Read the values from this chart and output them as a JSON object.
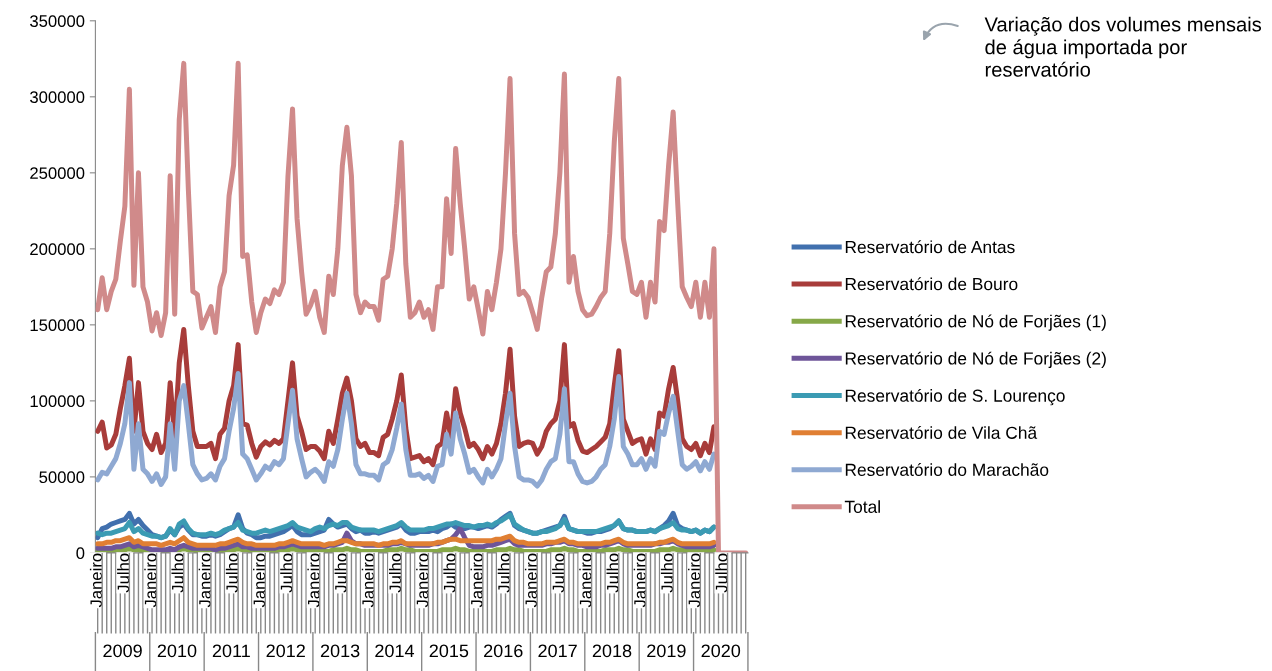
{
  "chart_data": {
    "type": "line",
    "categories": [
      "Janeiro",
      null,
      null,
      null,
      null,
      null,
      "Julho",
      null,
      null,
      null,
      null,
      null,
      "Janeiro",
      null,
      null,
      null,
      null,
      null,
      "Julho",
      null,
      null,
      null,
      null,
      null,
      "Janeiro",
      null,
      null,
      null,
      null,
      null,
      "Julho",
      null,
      null,
      null,
      null,
      null,
      "Janeiro",
      null,
      null,
      null,
      null,
      null,
      "Julho",
      null,
      null,
      null,
      null,
      null,
      "Janeiro",
      null,
      null,
      null,
      null,
      null,
      "Julho",
      null,
      null,
      null,
      null,
      null,
      "Janeiro",
      null,
      null,
      null,
      null,
      null,
      "Julho",
      null,
      null,
      null,
      null,
      null,
      "Janeiro",
      null,
      null,
      null,
      null,
      null,
      "Julho",
      null,
      null,
      null,
      null,
      null,
      "Janeiro",
      null,
      null,
      null,
      null,
      null,
      "Julho",
      null,
      null,
      null,
      null,
      null,
      "Janeiro",
      null,
      null,
      null,
      null,
      null,
      "Julho",
      null,
      null,
      null,
      null,
      null,
      "Janeiro",
      null,
      null,
      null,
      null,
      null,
      "Julho",
      null,
      null,
      null,
      null,
      null,
      "Janeiro",
      null,
      null,
      null,
      null,
      null,
      "Julho",
      null,
      null,
      null,
      null,
      null,
      "Janeiro",
      null,
      null,
      null,
      null,
      null,
      "Julho",
      null,
      null,
      null,
      null,
      null
    ],
    "series": [
      {
        "name": "Reservatório de Antas",
        "color": "#4170ae",
        "values": [
          10000,
          16000,
          17000,
          19000,
          20000,
          21000,
          22000,
          26000,
          19000,
          22000,
          18000,
          15000,
          12000,
          11000,
          10000,
          11000,
          15000,
          12000,
          17000,
          19000,
          15000,
          12000,
          12000,
          11000,
          11000,
          12000,
          11000,
          12000,
          14000,
          16000,
          17000,
          25000,
          16000,
          13000,
          12000,
          10000,
          10000,
          11000,
          11000,
          12000,
          13000,
          14000,
          16000,
          18000,
          14000,
          12000,
          12000,
          12000,
          13000,
          14000,
          15000,
          22000,
          19000,
          17000,
          18000,
          19000,
          16000,
          14000,
          15000,
          13000,
          13000,
          14000,
          13000,
          14000,
          15000,
          16000,
          17000,
          19000,
          15000,
          13000,
          13000,
          14000,
          14000,
          14000,
          15000,
          14000,
          16000,
          17000,
          19000,
          17000,
          16000,
          16000,
          17000,
          17000,
          16000,
          17000,
          18000,
          17000,
          19000,
          22000,
          24000,
          26000,
          18000,
          16000,
          15000,
          14000,
          13000,
          13000,
          14000,
          15000,
          16000,
          17000,
          18000,
          24000,
          16000,
          15000,
          14000,
          14000,
          13000,
          13000,
          14000,
          14000,
          15000,
          16000,
          18000,
          21000,
          16000,
          15000,
          15000,
          14000,
          14000,
          14000,
          15000,
          14000,
          16000,
          18000,
          21000,
          26000,
          18000,
          16000,
          15000,
          14000,
          15000,
          13000,
          15000,
          14000,
          17000,
          null,
          null,
          null,
          null,
          null,
          null,
          null
        ]
      },
      {
        "name": "Reservatório de Bouro",
        "color": "#a83c3a",
        "values": [
          80000,
          86000,
          69000,
          71000,
          78000,
          95000,
          110000,
          128000,
          80000,
          112000,
          80000,
          72000,
          68000,
          78000,
          66000,
          72000,
          112000,
          76000,
          125000,
          147000,
          110000,
          80000,
          70000,
          70000,
          70000,
          72000,
          62000,
          78000,
          82000,
          100000,
          110000,
          137000,
          85000,
          84000,
          72000,
          63000,
          70000,
          73000,
          71000,
          74000,
          72000,
          75000,
          100000,
          125000,
          90000,
          80000,
          68000,
          70000,
          70000,
          67000,
          62000,
          80000,
          72000,
          88000,
          105000,
          115000,
          100000,
          75000,
          70000,
          72000,
          66000,
          66000,
          64000,
          76000,
          78000,
          88000,
          100000,
          117000,
          82000,
          62000,
          63000,
          64000,
          60000,
          62000,
          58000,
          70000,
          72000,
          92000,
          75000,
          108000,
          92000,
          82000,
          70000,
          72000,
          68000,
          62000,
          70000,
          65000,
          72000,
          85000,
          105000,
          134000,
          90000,
          70000,
          72000,
          73000,
          72000,
          65000,
          70000,
          80000,
          85000,
          88000,
          100000,
          137000,
          83000,
          85000,
          74000,
          67000,
          66000,
          68000,
          70000,
          73000,
          76000,
          85000,
          110000,
          133000,
          88000,
          80000,
          72000,
          74000,
          75000,
          65000,
          75000,
          68000,
          92000,
          90000,
          108000,
          122000,
          100000,
          75000,
          70000,
          68000,
          72000,
          64000,
          72000,
          66000,
          83000,
          null,
          null,
          null,
          null,
          null,
          null,
          null
        ]
      },
      {
        "name": "Reservatório de Nó de Forjães (1)",
        "color": "#86a848",
        "values": [
          1000,
          1000,
          1000,
          1000,
          2000,
          2000,
          2000,
          3000,
          2000,
          2000,
          1000,
          1000,
          1000,
          1000,
          1000,
          1000,
          2000,
          2000,
          2000,
          3000,
          2000,
          2000,
          1000,
          1000,
          1000,
          1000,
          1000,
          1000,
          2000,
          2000,
          2000,
          3000,
          2000,
          2000,
          1000,
          1000,
          1000,
          1000,
          1000,
          1000,
          2000,
          2000,
          2000,
          3000,
          2000,
          2000,
          1000,
          1000,
          1000,
          1000,
          1000,
          1000,
          2000,
          2000,
          2000,
          3000,
          2000,
          2000,
          1000,
          1000,
          1000,
          1000,
          1000,
          1000,
          2000,
          2000,
          2000,
          3000,
          2000,
          2000,
          1000,
          1000,
          1000,
          1000,
          1000,
          1000,
          2000,
          2000,
          2000,
          3000,
          2000,
          2000,
          1000,
          1000,
          1000,
          1000,
          1000,
          1000,
          2000,
          2000,
          2000,
          3000,
          2000,
          2000,
          1000,
          1000,
          1000,
          1000,
          1000,
          1000,
          2000,
          2000,
          2000,
          3000,
          2000,
          2000,
          1000,
          1000,
          1000,
          1000,
          1000,
          1000,
          2000,
          2000,
          2000,
          3000,
          2000,
          2000,
          1000,
          1000,
          1000,
          1000,
          1000,
          1000,
          2000,
          2000,
          2000,
          3000,
          2000,
          2000,
          1000,
          1000,
          1000,
          1000,
          1000,
          1000,
          2000,
          null,
          null,
          null,
          null,
          null,
          null,
          null
        ]
      },
      {
        "name": "Reservatório de Nó de Forjães (2)",
        "color": "#6e5599",
        "values": [
          3000,
          3000,
          3000,
          3000,
          4000,
          4000,
          5000,
          6000,
          4000,
          5000,
          4000,
          3000,
          2000,
          2000,
          2000,
          2000,
          3000,
          2000,
          4000,
          5000,
          4000,
          3000,
          3000,
          3000,
          3000,
          3000,
          2000,
          3000,
          3000,
          4000,
          5000,
          6000,
          4000,
          4000,
          3000,
          3000,
          3000,
          3000,
          3000,
          3000,
          4000,
          4000,
          5000,
          6000,
          5000,
          4000,
          4000,
          4000,
          4000,
          4000,
          4000,
          5000,
          5000,
          6000,
          7000,
          13000,
          8000,
          6000,
          6000,
          5000,
          5000,
          5000,
          5000,
          5000,
          5000,
          6000,
          6000,
          7000,
          6000,
          5000,
          5000,
          5000,
          5000,
          5000,
          6000,
          6000,
          7000,
          8000,
          9000,
          12000,
          16000,
          10000,
          5000,
          4000,
          4000,
          4000,
          5000,
          5000,
          6000,
          7000,
          8000,
          9000,
          6000,
          5000,
          5000,
          5000,
          5000,
          5000,
          5000,
          6000,
          6000,
          7000,
          7000,
          8000,
          6000,
          6000,
          5000,
          5000,
          4000,
          4000,
          4000,
          5000,
          5000,
          6000,
          7000,
          8000,
          6000,
          5000,
          5000,
          5000,
          5000,
          5000,
          5000,
          6000,
          6000,
          7000,
          7000,
          8000,
          6000,
          5000,
          4000,
          4000,
          4000,
          4000,
          4000,
          4000,
          5000,
          null,
          null,
          null,
          null,
          null,
          null,
          null
        ]
      },
      {
        "name": "Reservatório de S. Lourenço",
        "color": "#3b9bb3",
        "values": [
          13000,
          12000,
          13000,
          13000,
          14000,
          15000,
          16000,
          20000,
          14000,
          16000,
          13000,
          12000,
          11000,
          11000,
          10000,
          11000,
          16000,
          12000,
          19000,
          21000,
          16000,
          13000,
          12000,
          12000,
          12000,
          13000,
          12000,
          13000,
          15000,
          16000,
          17000,
          20000,
          15000,
          14000,
          13000,
          13000,
          14000,
          15000,
          14000,
          15000,
          16000,
          17000,
          18000,
          20000,
          17000,
          16000,
          15000,
          14000,
          16000,
          17000,
          16000,
          18000,
          19000,
          18000,
          20000,
          20000,
          17000,
          16000,
          15000,
          15000,
          15000,
          15000,
          14000,
          15000,
          16000,
          17000,
          18000,
          20000,
          17000,
          15000,
          15000,
          15000,
          15000,
          16000,
          16000,
          17000,
          18000,
          19000,
          19000,
          20000,
          19000,
          18000,
          18000,
          17000,
          18000,
          18000,
          19000,
          18000,
          20000,
          21000,
          23000,
          25000,
          19000,
          17000,
          15000,
          14000,
          13000,
          13000,
          14000,
          14000,
          15000,
          16000,
          18000,
          22000,
          16000,
          15000,
          14000,
          14000,
          14000,
          14000,
          14000,
          15000,
          16000,
          17000,
          18000,
          21000,
          16000,
          15000,
          15000,
          14000,
          14000,
          14000,
          15000,
          14000,
          16000,
          17000,
          18000,
          20000,
          16000,
          15000,
          15000,
          14000,
          15000,
          13000,
          15000,
          14000,
          17000,
          null,
          null,
          null,
          null,
          null,
          null,
          null
        ]
      },
      {
        "name": "Reservatório de Vila Chã",
        "color": "#e07f33",
        "values": [
          6000,
          6000,
          7000,
          7000,
          8000,
          8000,
          9000,
          10000,
          7000,
          8000,
          6000,
          6000,
          6000,
          6000,
          5000,
          6000,
          7000,
          6000,
          8000,
          10000,
          7000,
          6000,
          5000,
          5000,
          5000,
          5000,
          5000,
          6000,
          6000,
          7000,
          8000,
          9000,
          7000,
          6000,
          6000,
          5000,
          5000,
          5000,
          5000,
          5000,
          6000,
          6000,
          7000,
          8000,
          7000,
          6000,
          6000,
          6000,
          6000,
          6000,
          5000,
          6000,
          6000,
          7000,
          8000,
          8000,
          7000,
          6000,
          6000,
          6000,
          6000,
          6000,
          5000,
          6000,
          6000,
          7000,
          7000,
          8000,
          6000,
          6000,
          6000,
          6000,
          6000,
          6000,
          6000,
          7000,
          7000,
          8000,
          9000,
          9000,
          8000,
          8000,
          8000,
          8000,
          8000,
          8000,
          8000,
          8000,
          9000,
          9000,
          10000,
          11000,
          8000,
          7000,
          7000,
          6000,
          6000,
          6000,
          6000,
          7000,
          7000,
          7000,
          8000,
          9000,
          7000,
          7000,
          6000,
          6000,
          6000,
          6000,
          6000,
          6000,
          7000,
          7000,
          8000,
          9000,
          7000,
          6000,
          6000,
          6000,
          6000,
          6000,
          6000,
          6000,
          7000,
          7000,
          8000,
          9000,
          7000,
          6000,
          6000,
          6000,
          6000,
          6000,
          6000,
          6000,
          7000,
          null,
          null,
          null,
          null,
          null,
          null,
          null
        ]
      },
      {
        "name": "Reservatório do Marachão",
        "color": "#8fa9d2",
        "values": [
          48000,
          53000,
          52000,
          57000,
          62000,
          72000,
          85000,
          112000,
          55000,
          85000,
          55000,
          52000,
          47000,
          52000,
          45000,
          50000,
          85000,
          55000,
          100000,
          110000,
          85000,
          58000,
          52000,
          48000,
          49000,
          52000,
          48000,
          57000,
          62000,
          80000,
          95000,
          118000,
          65000,
          62000,
          55000,
          48000,
          52000,
          57000,
          55000,
          60000,
          58000,
          62000,
          85000,
          107000,
          75000,
          62000,
          50000,
          53000,
          55000,
          52000,
          47000,
          60000,
          57000,
          68000,
          88000,
          105000,
          85000,
          58000,
          52000,
          52000,
          51000,
          51000,
          48000,
          58000,
          60000,
          68000,
          82000,
          98000,
          68000,
          51000,
          51000,
          52000,
          49000,
          51000,
          47000,
          57000,
          58000,
          78000,
          65000,
          92000,
          75000,
          65000,
          53000,
          55000,
          50000,
          46000,
          55000,
          50000,
          55000,
          62000,
          85000,
          105000,
          70000,
          50000,
          48000,
          48000,
          47000,
          44000,
          48000,
          55000,
          60000,
          62000,
          78000,
          108000,
          60000,
          60000,
          52000,
          47000,
          46000,
          47000,
          50000,
          55000,
          58000,
          70000,
          88000,
          116000,
          70000,
          65000,
          58000,
          58000,
          62000,
          55000,
          62000,
          57000,
          80000,
          78000,
          92000,
          103000,
          80000,
          58000,
          55000,
          57000,
          60000,
          54000,
          60000,
          55000,
          65000,
          null,
          null,
          null,
          null,
          null,
          null,
          null
        ]
      },
      {
        "name": "Total",
        "color": "#d08a8a",
        "values": [
          160000,
          181000,
          160000,
          172000,
          180000,
          205000,
          228000,
          305000,
          176000,
          250000,
          175000,
          165000,
          146000,
          158000,
          143000,
          158000,
          248000,
          157000,
          285000,
          322000,
          240000,
          172000,
          170000,
          148000,
          155000,
          162000,
          145000,
          175000,
          185000,
          235000,
          255000,
          322000,
          195000,
          196000,
          165000,
          145000,
          158000,
          167000,
          164000,
          173000,
          170000,
          178000,
          248000,
          292000,
          220000,
          185000,
          157000,
          163000,
          172000,
          155000,
          145000,
          182000,
          170000,
          200000,
          255000,
          280000,
          248000,
          170000,
          158000,
          165000,
          162000,
          162000,
          153000,
          180000,
          182000,
          200000,
          230000,
          270000,
          190000,
          155000,
          158000,
          165000,
          155000,
          160000,
          147000,
          175000,
          175000,
          233000,
          197000,
          266000,
          230000,
          200000,
          167000,
          175000,
          160000,
          144000,
          172000,
          160000,
          178000,
          200000,
          250000,
          312000,
          210000,
          170000,
          172000,
          168000,
          158000,
          147000,
          168000,
          185000,
          188000,
          210000,
          250000,
          315000,
          178000,
          195000,
          172000,
          160000,
          156000,
          157000,
          162000,
          168000,
          172000,
          210000,
          270000,
          312000,
          207000,
          190000,
          172000,
          170000,
          178000,
          155000,
          178000,
          165000,
          218000,
          212000,
          255000,
          290000,
          230000,
          175000,
          168000,
          162000,
          178000,
          155000,
          178000,
          155000,
          200000,
          0,
          0,
          0,
          0,
          0,
          0,
          0
        ]
      }
    ],
    "ylim": [
      0,
      350000
    ],
    "yticks": [
      0,
      50000,
      100000,
      150000,
      200000,
      250000,
      300000,
      350000
    ],
    "grid": false,
    "legend": "right",
    "marker": "none",
    "line_style": "solid",
    "annotations": [
      "Variação dos volumes mensais de água importada por reservatório",
      "2009",
      "2010",
      "2011",
      "2012",
      "2013",
      "2014",
      "2015",
      "2016",
      "2017",
      "2018",
      "2019",
      "2020"
    ]
  }
}
